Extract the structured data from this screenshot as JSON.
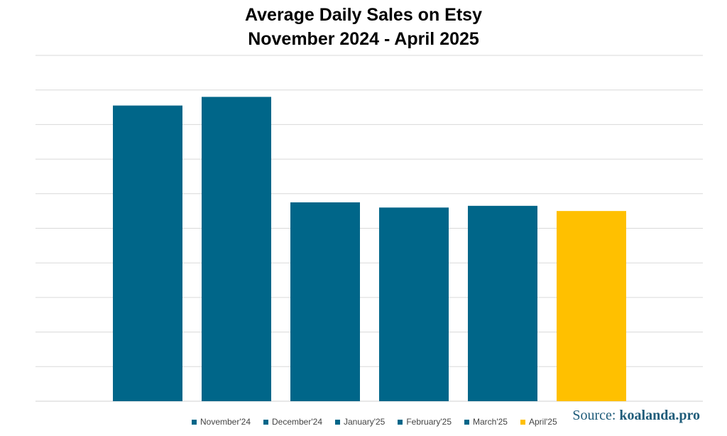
{
  "chart_data": {
    "type": "bar",
    "title": "Average Daily Sales on Etsy",
    "subtitle": "November 2024 - April 2025",
    "xlabel": "",
    "ylabel": "",
    "categories": [
      "November'24",
      "December'24",
      "January'25",
      "February'25",
      "March'25",
      "April'25"
    ],
    "values": [
      85.5,
      88.0,
      57.5,
      56.0,
      56.5,
      55.0
    ],
    "bar_colors": [
      "#006689",
      "#006689",
      "#006689",
      "#006689",
      "#006689",
      "#FFC000"
    ],
    "ylim": [
      0,
      100
    ],
    "grid": true,
    "legend": "bottom"
  },
  "source": {
    "label": "Source: ",
    "site": "koalanda.pro",
    "color": "#1F5C7A"
  },
  "colors": {
    "primary": "#006689",
    "highlight": "#FFC000",
    "gridline": "#D9D9D9"
  }
}
